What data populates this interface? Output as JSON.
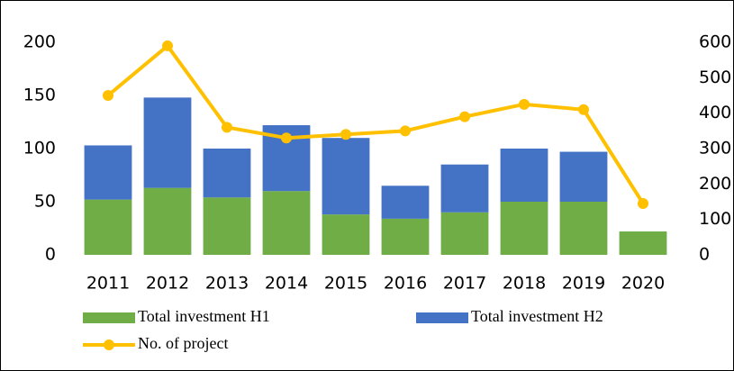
{
  "chart_data": {
    "type": "bar_line",
    "categories": [
      "2011",
      "2012",
      "2013",
      "2014",
      "2015",
      "2016",
      "2017",
      "2018",
      "2019",
      "2020"
    ],
    "series": [
      {
        "name": "Total investment H1",
        "color": "#70ad47",
        "type": "bar",
        "values": [
          52,
          63,
          54,
          60,
          38,
          34,
          40,
          50,
          50,
          22
        ]
      },
      {
        "name": "Total investment H2",
        "color": "#4472c4",
        "type": "bar",
        "values": [
          51,
          85,
          46,
          62,
          72,
          31,
          45,
          50,
          47,
          0
        ]
      },
      {
        "name": "No. of project",
        "color": "#ffc000",
        "type": "line",
        "axis": "y2",
        "values": [
          450,
          590,
          360,
          330,
          340,
          350,
          390,
          425,
          410,
          145
        ]
      }
    ],
    "ylim": [
      0,
      200
    ],
    "yticks": [
      0,
      50,
      100,
      150,
      200
    ],
    "y2lim": [
      0,
      600
    ],
    "y2ticks": [
      0,
      100,
      200,
      300,
      400,
      500,
      600
    ],
    "legend": "bottom",
    "grid": false
  }
}
